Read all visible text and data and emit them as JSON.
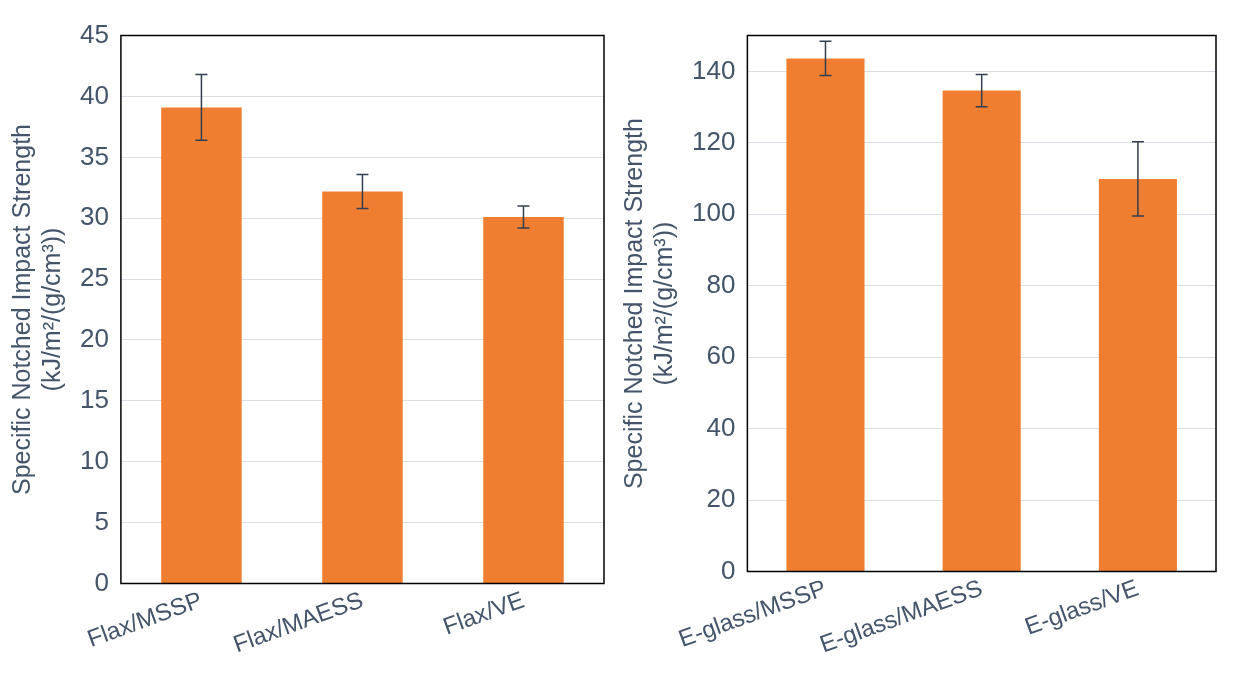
{
  "chart_data": [
    {
      "type": "bar",
      "categories": [
        "Flax/MSSP",
        "Flax/MAESS",
        "Flax/VE"
      ],
      "values": [
        39.1,
        32.2,
        30.1
      ],
      "errors": [
        2.7,
        1.4,
        0.9
      ],
      "color": "#f07e30",
      "ylabel": "Specific Notched Impact Strength\n(kJ/m²/(g/cm³))",
      "ylim": [
        0,
        45
      ],
      "yticks": [
        0,
        5,
        10,
        15,
        20,
        25,
        30,
        35,
        40,
        45
      ],
      "grid": "y",
      "legend": false
    },
    {
      "type": "bar",
      "categories": [
        "E-glass/MSSP",
        "E-glass/MAESS",
        "E-glass/VE"
      ],
      "values": [
        143.6,
        134.6,
        109.9
      ],
      "errors": [
        4.8,
        4.5,
        10.4
      ],
      "color": "#f07e30",
      "ylabel": "Specific Notched Impact Strength\n(kJ/m²/(g/cm³))",
      "ylim": [
        0,
        150
      ],
      "yticks": [
        0,
        20,
        40,
        60,
        80,
        100,
        120,
        140
      ],
      "grid": "y",
      "legend": false
    }
  ]
}
